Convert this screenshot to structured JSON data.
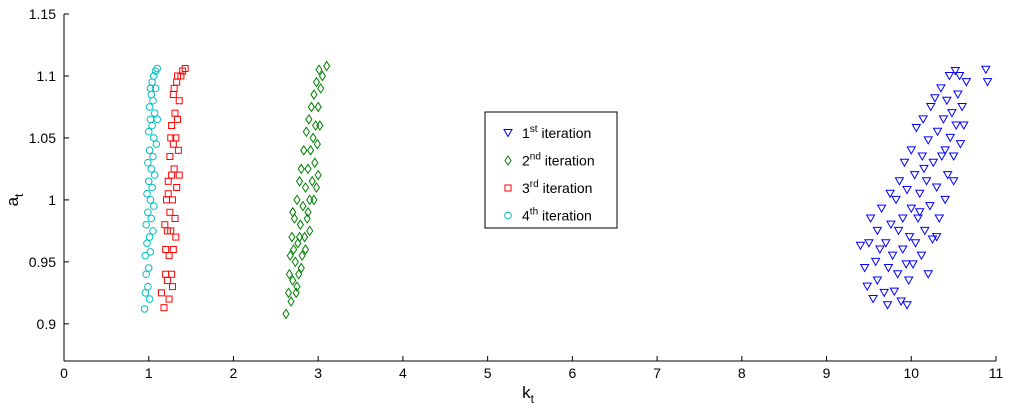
{
  "chart_data": {
    "type": "scatter",
    "title": "",
    "xlabel": "k",
    "xlabel_sub": "t",
    "ylabel": "a",
    "ylabel_sub": "t",
    "xlim": [
      0,
      11
    ],
    "ylim": [
      0.87,
      1.15
    ],
    "xticks": [
      "0",
      "1",
      "2",
      "3",
      "4",
      "5",
      "6",
      "7",
      "8",
      "9",
      "10",
      "11"
    ],
    "yticks": [
      "0.9",
      "0.95",
      "1",
      "1.05",
      "1.1",
      "1.15"
    ],
    "grid": false,
    "legend_position": "center",
    "series": [
      {
        "name_num": "1",
        "name_sup": "st",
        "name_rest": " iteration",
        "marker": "triangle-down",
        "color": "#0000ff",
        "points": [
          [
            9.4,
            0.963
          ],
          [
            9.45,
            0.945
          ],
          [
            9.48,
            0.93
          ],
          [
            9.5,
            0.965
          ],
          [
            9.55,
            0.92
          ],
          [
            9.52,
            0.985
          ],
          [
            9.58,
            0.95
          ],
          [
            9.6,
            0.975
          ],
          [
            9.6,
            0.935
          ],
          [
            9.63,
            0.96
          ],
          [
            9.65,
            0.993
          ],
          [
            9.68,
            0.925
          ],
          [
            9.7,
            0.965
          ],
          [
            9.72,
            0.915
          ],
          [
            9.73,
            0.945
          ],
          [
            9.75,
            1.005
          ],
          [
            9.76,
            0.98
          ],
          [
            9.78,
            0.955
          ],
          [
            9.8,
            0.926
          ],
          [
            9.82,
            1.0
          ],
          [
            9.84,
            0.94
          ],
          [
            9.85,
            0.975
          ],
          [
            9.86,
            1.015
          ],
          [
            9.88,
            0.918
          ],
          [
            9.9,
            0.985
          ],
          [
            9.9,
            0.96
          ],
          [
            9.92,
            1.03
          ],
          [
            9.94,
            0.948
          ],
          [
            9.95,
            1.008
          ],
          [
            9.97,
            0.935
          ],
          [
            9.98,
            0.97
          ],
          [
            10.0,
            1.04
          ],
          [
            10.0,
            0.993
          ],
          [
            10.02,
            0.948
          ],
          [
            10.04,
            1.02
          ],
          [
            10.05,
            0.965
          ],
          [
            10.06,
            1.058
          ],
          [
            10.08,
            0.985
          ],
          [
            10.1,
            1.005
          ],
          [
            10.12,
            0.955
          ],
          [
            10.13,
            1.035
          ],
          [
            10.14,
            1.065
          ],
          [
            10.16,
            0.975
          ],
          [
            10.18,
            1.015
          ],
          [
            10.2,
            1.048
          ],
          [
            10.22,
            0.995
          ],
          [
            10.23,
            1.075
          ],
          [
            10.25,
            0.968
          ],
          [
            10.26,
            1.03
          ],
          [
            10.28,
            1.082
          ],
          [
            10.3,
            1.01
          ],
          [
            10.31,
            1.055
          ],
          [
            10.33,
            0.985
          ],
          [
            10.35,
            1.09
          ],
          [
            10.36,
            1.035
          ],
          [
            10.38,
            1.065
          ],
          [
            10.4,
            1.0
          ],
          [
            10.42,
            1.08
          ],
          [
            10.43,
            1.02
          ],
          [
            10.45,
            1.1
          ],
          [
            10.46,
            1.05
          ],
          [
            10.48,
            1.07
          ],
          [
            10.5,
            1.035
          ],
          [
            10.52,
            1.104
          ],
          [
            10.53,
            1.06
          ],
          [
            10.55,
            1.085
          ],
          [
            10.57,
            1.1
          ],
          [
            10.58,
            1.045
          ],
          [
            10.6,
            1.075
          ],
          [
            10.62,
            1.06
          ],
          [
            10.65,
            1.095
          ],
          [
            10.88,
            1.105
          ],
          [
            10.9,
            1.095
          ],
          [
            10.3,
            0.97
          ],
          [
            10.2,
            0.94
          ],
          [
            10.1,
            0.99
          ],
          [
            9.95,
            0.915
          ],
          [
            10.4,
            1.04
          ],
          [
            10.5,
            1.015
          ],
          [
            10.15,
            1.025
          ]
        ]
      },
      {
        "name_num": "2",
        "name_sup": "nd",
        "name_rest": " iteration",
        "marker": "diamond",
        "color": "#008000",
        "points": [
          [
            2.62,
            0.908
          ],
          [
            2.65,
            0.925
          ],
          [
            2.66,
            0.94
          ],
          [
            2.67,
            0.955
          ],
          [
            2.68,
            0.918
          ],
          [
            2.69,
            0.97
          ],
          [
            2.7,
            0.935
          ],
          [
            2.71,
            0.96
          ],
          [
            2.72,
            0.985
          ],
          [
            2.73,
            0.95
          ],
          [
            2.74,
            0.925
          ],
          [
            2.75,
            1.0
          ],
          [
            2.76,
            0.965
          ],
          [
            2.77,
            0.94
          ],
          [
            2.78,
            1.015
          ],
          [
            2.79,
            0.98
          ],
          [
            2.8,
            1.025
          ],
          [
            2.81,
            0.955
          ],
          [
            2.82,
            0.995
          ],
          [
            2.83,
            1.04
          ],
          [
            2.84,
            0.97
          ],
          [
            2.85,
            1.01
          ],
          [
            2.86,
            1.055
          ],
          [
            2.87,
            0.985
          ],
          [
            2.88,
            1.025
          ],
          [
            2.89,
            1.065
          ],
          [
            2.9,
            1.0
          ],
          [
            2.91,
            1.04
          ],
          [
            2.92,
            1.075
          ],
          [
            2.93,
            1.015
          ],
          [
            2.94,
            1.05
          ],
          [
            2.95,
            1.085
          ],
          [
            2.96,
            1.03
          ],
          [
            2.97,
            1.06
          ],
          [
            2.98,
            1.095
          ],
          [
            2.99,
            1.045
          ],
          [
            3.0,
            1.075
          ],
          [
            3.01,
            1.105
          ],
          [
            3.02,
            1.06
          ],
          [
            3.03,
            1.09
          ],
          [
            3.05,
            1.1
          ],
          [
            3.1,
            1.108
          ],
          [
            2.7,
            0.99
          ],
          [
            2.75,
            0.93
          ],
          [
            2.8,
            0.945
          ],
          [
            2.85,
            0.96
          ],
          [
            2.9,
            0.975
          ],
          [
            2.95,
            1.0
          ],
          [
            3.0,
            1.02
          ],
          [
            2.78,
            0.97
          ],
          [
            2.88,
            0.99
          ],
          [
            2.98,
            1.01
          ]
        ]
      },
      {
        "name_num": "3",
        "name_sup": "rd",
        "name_rest": " iteration",
        "marker": "square",
        "color": "#ff0000",
        "points": [
          [
            1.15,
            0.925
          ],
          [
            1.18,
            0.913
          ],
          [
            1.2,
            0.94
          ],
          [
            1.22,
            0.935
          ],
          [
            1.2,
            0.96
          ],
          [
            1.22,
            0.975
          ],
          [
            1.24,
            0.955
          ],
          [
            1.25,
            0.99
          ],
          [
            1.23,
            1.005
          ],
          [
            1.26,
            0.975
          ],
          [
            1.27,
            1.02
          ],
          [
            1.25,
            1.035
          ],
          [
            1.28,
            1.0
          ],
          [
            1.29,
            1.045
          ],
          [
            1.27,
            1.06
          ],
          [
            1.3,
            1.025
          ],
          [
            1.31,
            1.07
          ],
          [
            1.29,
            1.085
          ],
          [
            1.32,
            1.05
          ],
          [
            1.33,
            1.095
          ],
          [
            1.34,
            1.065
          ],
          [
            1.36,
            1.08
          ],
          [
            1.38,
            1.1
          ],
          [
            1.4,
            1.104
          ],
          [
            1.43,
            1.106
          ],
          [
            1.35,
            1.04
          ],
          [
            1.33,
            1.01
          ],
          [
            1.31,
            0.985
          ],
          [
            1.29,
            0.96
          ],
          [
            1.27,
            0.94
          ],
          [
            1.24,
            0.92
          ],
          [
            1.21,
            1.0
          ],
          [
            1.19,
            0.98
          ],
          [
            1.23,
            1.015
          ],
          [
            1.26,
            1.05
          ],
          [
            1.3,
            1.09
          ],
          [
            1.34,
            1.1
          ],
          [
            1.28,
            0.93
          ],
          [
            1.32,
            0.97
          ],
          [
            1.36,
            1.02
          ]
        ]
      },
      {
        "name_num": "4",
        "name_sup": "th",
        "name_rest": " iteration",
        "marker": "circle",
        "color": "#00bfbf",
        "points": [
          [
            0.95,
            0.912
          ],
          [
            0.96,
            0.925
          ],
          [
            0.97,
            0.94
          ],
          [
            0.96,
            0.955
          ],
          [
            0.98,
            0.965
          ],
          [
            0.97,
            0.98
          ],
          [
            0.99,
            0.99
          ],
          [
            0.98,
            1.005
          ],
          [
            1.0,
            1.015
          ],
          [
            0.99,
            1.03
          ],
          [
            1.01,
            1.04
          ],
          [
            1.0,
            1.055
          ],
          [
            1.02,
            1.065
          ],
          [
            1.01,
            1.075
          ],
          [
            1.03,
            1.085
          ],
          [
            1.02,
            1.09
          ],
          [
            1.04,
            1.095
          ],
          [
            1.06,
            1.1
          ],
          [
            1.08,
            1.104
          ],
          [
            1.1,
            1.106
          ],
          [
            1.05,
            1.08
          ],
          [
            1.07,
            1.07
          ],
          [
            1.04,
            1.06
          ],
          [
            1.06,
            1.05
          ],
          [
            1.03,
            1.025
          ],
          [
            1.05,
            1.035
          ],
          [
            1.02,
            1.0
          ],
          [
            1.04,
            1.01
          ],
          [
            1.01,
            0.97
          ],
          [
            1.03,
            0.985
          ],
          [
            1.0,
            0.945
          ],
          [
            1.02,
            0.958
          ],
          [
            0.99,
            0.93
          ],
          [
            1.01,
            0.92
          ],
          [
            1.08,
            1.09
          ],
          [
            1.1,
            1.065
          ],
          [
            1.09,
            1.045
          ],
          [
            1.07,
            1.02
          ],
          [
            1.06,
            0.995
          ],
          [
            1.05,
            0.975
          ]
        ]
      }
    ]
  }
}
